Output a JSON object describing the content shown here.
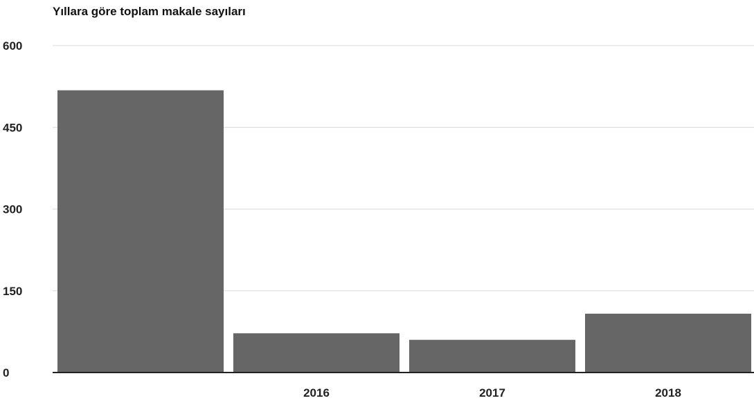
{
  "chart_data": {
    "type": "bar",
    "title": "Yıllara göre toplam makale sayıları",
    "categories": [
      "",
      "2016",
      "2017",
      "2018"
    ],
    "values": [
      518,
      72,
      60,
      108
    ],
    "ylim": [
      0,
      600
    ],
    "yticks": [
      0,
      150,
      300,
      450,
      600
    ],
    "xlabel": "",
    "ylabel": "",
    "grid": true,
    "legend": "none",
    "bar_color": "#666666"
  }
}
